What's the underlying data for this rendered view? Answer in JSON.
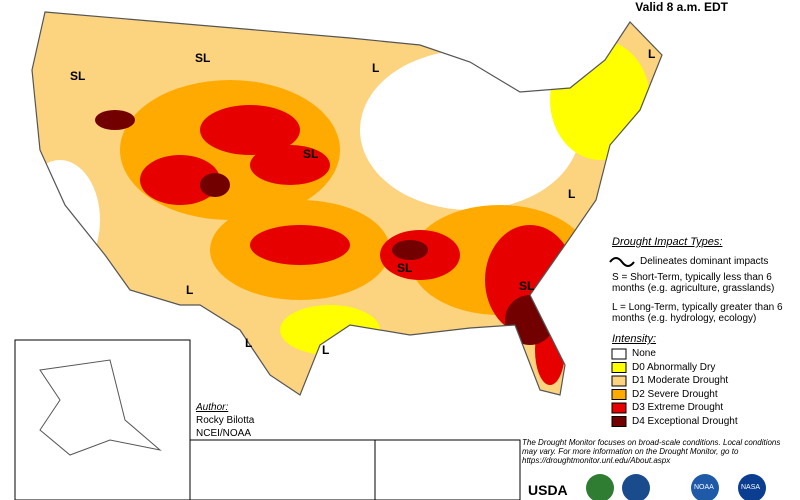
{
  "header": {
    "valid": "Valid 8 a.m. EDT"
  },
  "map_labels": [
    "SL",
    "SL",
    "L",
    "L",
    "SL",
    "L",
    "SL",
    "SL",
    "L",
    "L",
    "L"
  ],
  "legend": {
    "impact_title": "Drought Impact Types:",
    "delineates": "Delineates dominant impacts",
    "short_term": "S = Short-Term, typically less than 6 months (e.g. agriculture, grasslands)",
    "long_term": "L = Long-Term, typically greater than 6 months (e.g. hydrology, ecology)",
    "intensity_title": "Intensity:",
    "items": [
      {
        "label": "None",
        "color": "#ffffff"
      },
      {
        "label": "D0 Abnormally Dry",
        "color": "#ffff00"
      },
      {
        "label": "D1 Moderate Drought",
        "color": "#fcd37f"
      },
      {
        "label": "D2 Severe Drought",
        "color": "#ffaa00"
      },
      {
        "label": "D3 Extreme Drought",
        "color": "#e60000"
      },
      {
        "label": "D4 Exceptional Drought",
        "color": "#730000"
      }
    ]
  },
  "author": {
    "title": "Author:",
    "name": "Rocky Bilotta",
    "org": "NCEI/NOAA"
  },
  "note": "The Drought Monitor focuses on broad-scale conditions. Local conditions may vary. For more information on the Drought Monitor, go to https://droughtmonitor.unl.edu/About.aspx",
  "logos": [
    "USDA",
    "NOAA",
    "NASA"
  ]
}
